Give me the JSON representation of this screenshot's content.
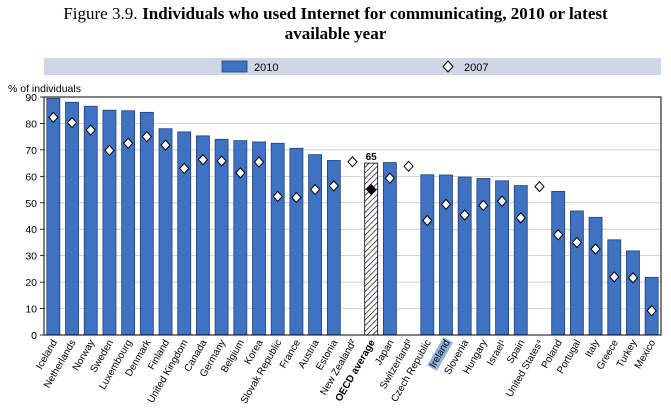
{
  "figure_label": "Figure 3.9.",
  "title_line1": "Individuals who used Internet for communicating, 2010 or latest",
  "title_line2": "available year",
  "colors": {
    "bar": "#3f73c2",
    "bar_stroke": "#1f3f7a",
    "legend_band": "#cfd7e6",
    "highlight": "#8fb3dc"
  },
  "chart_data": {
    "type": "bar",
    "ylabel": "% of individuals",
    "ylim": [
      0,
      90
    ],
    "yticks": [
      0,
      10,
      20,
      30,
      40,
      50,
      60,
      70,
      80,
      90
    ],
    "legend": [
      "2010",
      "2007"
    ],
    "categories": [
      "Iceland",
      "Netherlands",
      "Norway",
      "Sweden",
      "Luxembourg",
      "Denmark",
      "Finland",
      "United Kingdom",
      "Canada",
      "Germany",
      "Belgium",
      "Korea",
      "Slovak Republic",
      "France",
      "Austria",
      "Estonia",
      "New Zealand²",
      "OECD average",
      "Japan",
      "Switzerland³",
      "Czech Republic",
      "Ireland",
      "Slovenia",
      "Hungary",
      "Israel¹",
      "Spain",
      "United States⁴",
      "Poland",
      "Portugal",
      "Italy",
      "Greece",
      "Turkey",
      "Mexico"
    ],
    "series": [
      {
        "name": "2010",
        "values": [
          89.5,
          88,
          86.5,
          85,
          84.8,
          84.2,
          78,
          76.8,
          75.3,
          74,
          73.5,
          73,
          72.5,
          70.6,
          68.2,
          66,
          null,
          65,
          65.2,
          null,
          60.6,
          60.5,
          59.7,
          59.2,
          58.3,
          56.5,
          null,
          54.3,
          46.9,
          44.5,
          36,
          31.8,
          21.8
        ]
      },
      {
        "name": "2007",
        "values": [
          82.3,
          80.3,
          77.5,
          69.8,
          72.5,
          75,
          71.8,
          63,
          66.3,
          65.8,
          61.3,
          65.4,
          52.4,
          52,
          55,
          56.4,
          65.5,
          55,
          59.3,
          63.8,
          43.3,
          49.4,
          45.4,
          49,
          50.6,
          44.3,
          56.1,
          37.9,
          35,
          32.5,
          22,
          21.6,
          9.2
        ]
      }
    ],
    "average_label": "65",
    "average_category": "OECD average",
    "highlighted_category": "Ireland"
  }
}
